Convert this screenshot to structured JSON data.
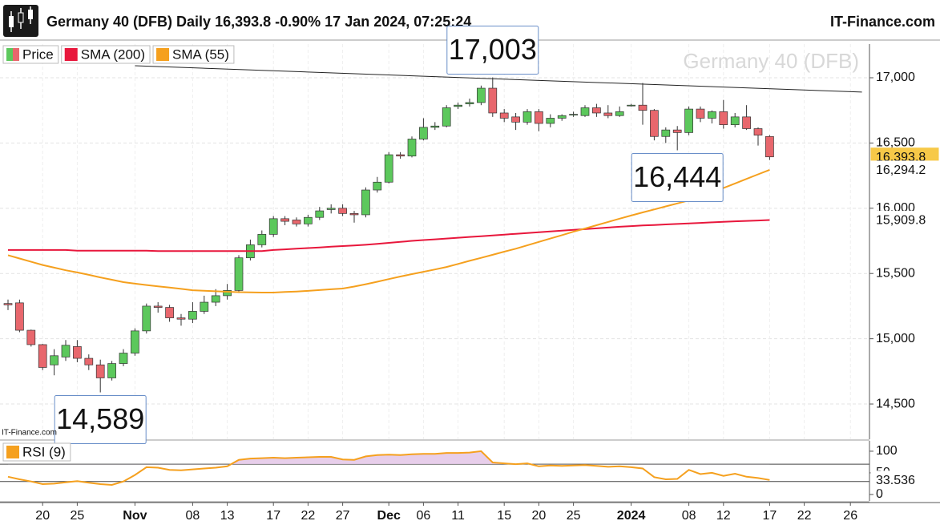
{
  "header": {
    "title": "Germany 40 (DFB) Daily 16,393.8 -0.90% 17 Jan 2024, 07:25:24",
    "brand": "IT-Finance.com"
  },
  "chart_data": [
    {
      "type": "candlestick",
      "watermark": "Germany 40 (DFB)",
      "source": "IT-Finance.com",
      "grid": true,
      "categories": [
        null,
        null,
        null,
        "20",
        null,
        null,
        "25",
        null,
        null,
        null,
        null,
        "Nov",
        null,
        null,
        null,
        null,
        "08",
        null,
        null,
        "13",
        null,
        null,
        null,
        "17",
        null,
        null,
        "22",
        null,
        null,
        "27",
        null,
        null,
        null,
        "Dec",
        null,
        null,
        "06",
        null,
        null,
        "11",
        null,
        null,
        null,
        "15",
        null,
        null,
        "20",
        null,
        null,
        "25",
        null,
        null,
        null,
        null,
        "2024",
        null,
        null,
        null,
        null,
        "08",
        null,
        null,
        "12",
        null,
        null,
        null,
        "17",
        null,
        null,
        "22",
        null,
        null,
        null,
        "26"
      ],
      "ylim": [
        14230,
        17258
      ],
      "yticks": [
        {
          "value": 14500,
          "label": "14,500"
        },
        {
          "value": 15000,
          "label": "15,000"
        },
        {
          "value": 15500,
          "label": "15,500"
        },
        {
          "value": 16000,
          "label": "16,000"
        },
        {
          "value": 16500,
          "label": "16,500"
        },
        {
          "value": 17000,
          "label": "17,000"
        }
      ],
      "series": [
        {
          "name": "Price",
          "up_color": "#5cc85c",
          "down_color": "#e8676d",
          "last_label": "16,393.8",
          "label_color": "#f7c948",
          "open": [
            15270,
            15275,
            15065,
            14955,
            14800,
            14860,
            14940,
            14850,
            14800,
            14700,
            14810,
            14890,
            15060,
            15250,
            15240,
            15160,
            15150,
            15210,
            15280,
            15330,
            15370,
            15620,
            15720,
            15800,
            15920,
            15910,
            15880,
            15930,
            15990,
            16000,
            15960,
            15950,
            16140,
            16200,
            16410,
            16400,
            16530,
            16620,
            16630,
            16780,
            16800,
            16810,
            16920,
            16730,
            16700,
            16660,
            16740,
            16650,
            16690,
            16720,
            16710,
            16770,
            16730,
            16710,
            16790,
            16790,
            16750,
            16550,
            16600,
            16580,
            16760,
            16690,
            16740,
            16640,
            16700,
            16610,
            16550,
            null,
            null,
            null,
            null,
            null,
            null,
            null
          ],
          "high": [
            15300,
            15300,
            15070,
            14960,
            14920,
            14990,
            14990,
            14880,
            14840,
            14830,
            14920,
            15080,
            15270,
            15280,
            15260,
            15190,
            15280,
            15330,
            15380,
            15420,
            15640,
            15760,
            15830,
            15940,
            15940,
            15930,
            15950,
            16010,
            16030,
            16030,
            15980,
            16160,
            16240,
            16430,
            16430,
            16550,
            16690,
            16660,
            16790,
            16810,
            16840,
            16940,
            17003,
            16760,
            16730,
            16760,
            16760,
            16720,
            16720,
            16740,
            16790,
            16800,
            16790,
            16780,
            16800,
            16960,
            16760,
            16620,
            16630,
            16780,
            16780,
            16750,
            16830,
            16730,
            16790,
            16620,
            16560,
            null,
            null,
            null,
            null,
            null,
            null,
            null
          ],
          "low": [
            15220,
            15050,
            14940,
            14760,
            14720,
            14830,
            14820,
            14760,
            14589,
            14680,
            14790,
            14870,
            15040,
            15200,
            15130,
            15100,
            15120,
            15190,
            15250,
            15300,
            15350,
            15600,
            15700,
            15780,
            15870,
            15860,
            15860,
            15910,
            15960,
            15940,
            15890,
            15930,
            16120,
            16190,
            16380,
            16390,
            16520,
            16600,
            16620,
            16760,
            16780,
            16790,
            16700,
            16660,
            16600,
            16640,
            16590,
            16620,
            16670,
            16700,
            16700,
            16700,
            16690,
            16700,
            16780,
            16640,
            16520,
            16500,
            16444,
            16560,
            16660,
            16650,
            16610,
            16620,
            16600,
            16480,
            16370,
            null,
            null,
            null,
            null,
            null,
            null,
            null
          ],
          "close": [
            15260,
            15065,
            14955,
            14780,
            14870,
            14950,
            14850,
            14800,
            14700,
            14810,
            14890,
            15060,
            15250,
            15240,
            15160,
            15150,
            15210,
            15280,
            15330,
            15370,
            15620,
            15720,
            15800,
            15920,
            15900,
            15880,
            15930,
            15980,
            16000,
            15960,
            15950,
            16140,
            16200,
            16410,
            16400,
            16530,
            16620,
            16630,
            16770,
            16790,
            16810,
            16920,
            16730,
            16690,
            16660,
            16740,
            16650,
            16690,
            16710,
            16720,
            16770,
            16730,
            16710,
            16740,
            16790,
            16750,
            16550,
            16600,
            16580,
            16760,
            16690,
            16740,
            16640,
            16700,
            16610,
            16560,
            16393.8,
            null,
            null,
            null,
            null,
            null,
            null,
            null
          ]
        },
        {
          "name": "SMA (200)",
          "color": "#e8173c",
          "last_label": "15,909.8",
          "values": [
            15680,
            15680,
            15680,
            15680,
            15680,
            15680,
            15675,
            15675,
            15675,
            15675,
            15675,
            15675,
            15675,
            15672,
            15672,
            15672,
            15672,
            15672,
            15672,
            15672,
            15672,
            15672,
            15672,
            15680,
            15685,
            15690,
            15695,
            15700,
            15705,
            15710,
            15715,
            15720,
            15727,
            15735,
            15742,
            15750,
            15756,
            15762,
            15768,
            15774,
            15780,
            15786,
            15792,
            15798,
            15804,
            15810,
            15816,
            15822,
            15828,
            15834,
            15840,
            15846,
            15852,
            15858,
            15863,
            15868,
            15872,
            15876,
            15880,
            15884,
            15888,
            15892,
            15896,
            15900,
            15903,
            15906,
            15909.8,
            null,
            null,
            null,
            null,
            null,
            null,
            null
          ]
        },
        {
          "name": "SMA (55)",
          "color": "#f5a01e",
          "last_label": "16,294.2",
          "values": [
            15640,
            15615,
            15590,
            15565,
            15545,
            15525,
            15508,
            15490,
            15470,
            15452,
            15434,
            15422,
            15412,
            15402,
            15392,
            15382,
            15372,
            15368,
            15364,
            15360,
            15357,
            15355,
            15354,
            15354,
            15358,
            15362,
            15367,
            15373,
            15379,
            15385,
            15400,
            15418,
            15437,
            15457,
            15477,
            15495,
            15513,
            15531,
            15550,
            15573,
            15597,
            15620,
            15643,
            15667,
            15690,
            15716,
            15742,
            15768,
            15794,
            15820,
            15845,
            15870,
            15895,
            15920,
            15944,
            15968,
            15991,
            16014,
            16037,
            16060,
            16090,
            16122,
            16155,
            16190,
            16225,
            16260,
            16294.2,
            null,
            null,
            null,
            null,
            null,
            null,
            null
          ]
        }
      ],
      "trendline": {
        "x": [
          11,
          74
        ],
        "values": [
          17092,
          16890
        ],
        "color": "#222"
      },
      "annotations": [
        {
          "label": "17,003",
          "value": 17003,
          "x": 42,
          "anchor": "above"
        },
        {
          "label": "16,444",
          "value": 16444,
          "x": 58,
          "anchor": "below"
        },
        {
          "label": "14,589",
          "value": 14589,
          "x": 8,
          "anchor": "below"
        }
      ]
    },
    {
      "type": "line",
      "ylim": [
        -15,
        124
      ],
      "yticks": [
        0,
        50,
        100
      ],
      "levels": [
        30,
        70
      ],
      "fill_color": "#e3c6e6",
      "series": [
        {
          "name": "RSI (9)",
          "color": "#f5a01e",
          "last_label": "33.536",
          "values": [
            41,
            35,
            30,
            24,
            25,
            28,
            31,
            27,
            24,
            22,
            30,
            45,
            63,
            62,
            57,
            56,
            58,
            60,
            62,
            65,
            80,
            83,
            84,
            85,
            84,
            85,
            86,
            87,
            87,
            81,
            80,
            88,
            91,
            92,
            91,
            93,
            94,
            94,
            96,
            96,
            97,
            100,
            74,
            72,
            70,
            72,
            65,
            67,
            66,
            67,
            68,
            66,
            64,
            65,
            63,
            60,
            40,
            35,
            36,
            57,
            47,
            50,
            43,
            48,
            41,
            38,
            33.536,
            null,
            null,
            null,
            null,
            null,
            null,
            null
          ]
        }
      ]
    }
  ]
}
